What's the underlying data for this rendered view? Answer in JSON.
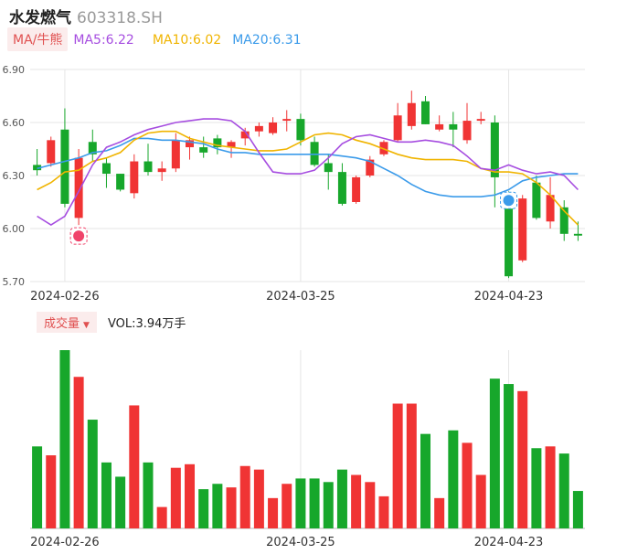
{
  "header": {
    "name": "水发燃气",
    "code": "603318.SH"
  },
  "legend": {
    "ma_label": "MA/牛熊",
    "ma5": "MA5:6.22",
    "ma10": "MA10:6.02",
    "ma20": "MA20:6.31"
  },
  "vol_legend": {
    "label": "成交量",
    "value": "VOL:3.94万手"
  },
  "colors": {
    "up": "#f03434",
    "down": "#17a72b",
    "ma5": "#a64de0",
    "ma10": "#f0b400",
    "ma20": "#3b9bea",
    "grid": "#e6e6e6"
  },
  "chart_data": {
    "type": "candlestick",
    "y_ticks": [
      "6.90",
      "6.60",
      "6.30",
      "6.00",
      "5.70"
    ],
    "ylim": [
      5.7,
      6.9
    ],
    "x_ticks": [
      {
        "index": 2,
        "label": "2024-02-26"
      },
      {
        "index": 19,
        "label": "2024-03-25"
      },
      {
        "index": 34,
        "label": "2024-04-23"
      }
    ],
    "markers": [
      {
        "index": 3,
        "icon": "bull-marker"
      },
      {
        "index": 34,
        "icon": "bear-marker"
      }
    ],
    "candles": [
      {
        "o": 6.36,
        "c": 6.33,
        "h": 6.45,
        "l": 6.3
      },
      {
        "o": 6.37,
        "c": 6.5,
        "h": 6.52,
        "l": 6.35
      },
      {
        "o": 6.56,
        "c": 6.14,
        "h": 6.68,
        "l": 6.12
      },
      {
        "o": 6.06,
        "c": 6.4,
        "h": 6.45,
        "l": 6.02
      },
      {
        "o": 6.49,
        "c": 6.42,
        "h": 6.56,
        "l": 6.38
      },
      {
        "o": 6.37,
        "c": 6.31,
        "h": 6.4,
        "l": 6.23
      },
      {
        "o": 6.31,
        "c": 6.22,
        "h": 6.31,
        "l": 6.21
      },
      {
        "o": 6.2,
        "c": 6.38,
        "h": 6.42,
        "l": 6.17
      },
      {
        "o": 6.38,
        "c": 6.32,
        "h": 6.48,
        "l": 6.3
      },
      {
        "o": 6.32,
        "c": 6.34,
        "h": 6.38,
        "l": 6.27
      },
      {
        "o": 6.34,
        "c": 6.5,
        "h": 6.54,
        "l": 6.32
      },
      {
        "o": 6.46,
        "c": 6.5,
        "h": 6.52,
        "l": 6.39
      },
      {
        "o": 6.46,
        "c": 6.43,
        "h": 6.52,
        "l": 6.4
      },
      {
        "o": 6.51,
        "c": 6.46,
        "h": 6.53,
        "l": 6.42
      },
      {
        "o": 6.46,
        "c": 6.49,
        "h": 6.5,
        "l": 6.4
      },
      {
        "o": 6.51,
        "c": 6.55,
        "h": 6.57,
        "l": 6.47
      },
      {
        "o": 6.55,
        "c": 6.58,
        "h": 6.6,
        "l": 6.52
      },
      {
        "o": 6.54,
        "c": 6.6,
        "h": 6.63,
        "l": 6.53
      },
      {
        "o": 6.61,
        "c": 6.62,
        "h": 6.67,
        "l": 6.55
      },
      {
        "o": 6.62,
        "c": 6.5,
        "h": 6.65,
        "l": 6.47
      },
      {
        "o": 6.49,
        "c": 6.36,
        "h": 6.52,
        "l": 6.35
      },
      {
        "o": 6.37,
        "c": 6.32,
        "h": 6.42,
        "l": 6.22
      },
      {
        "o": 6.32,
        "c": 6.14,
        "h": 6.37,
        "l": 6.13
      },
      {
        "o": 6.15,
        "c": 6.29,
        "h": 6.3,
        "l": 6.14
      },
      {
        "o": 6.3,
        "c": 6.39,
        "h": 6.41,
        "l": 6.29
      },
      {
        "o": 6.42,
        "c": 6.49,
        "h": 6.5,
        "l": 6.41
      },
      {
        "o": 6.5,
        "c": 6.64,
        "h": 6.71,
        "l": 6.49
      },
      {
        "o": 6.58,
        "c": 6.71,
        "h": 6.78,
        "l": 6.56
      },
      {
        "o": 6.72,
        "c": 6.59,
        "h": 6.75,
        "l": 6.59
      },
      {
        "o": 6.56,
        "c": 6.59,
        "h": 6.64,
        "l": 6.55
      },
      {
        "o": 6.59,
        "c": 6.56,
        "h": 6.66,
        "l": 6.46
      },
      {
        "o": 6.5,
        "c": 6.61,
        "h": 6.71,
        "l": 6.48
      },
      {
        "o": 6.61,
        "c": 6.62,
        "h": 6.66,
        "l": 6.59
      },
      {
        "o": 6.6,
        "c": 6.29,
        "h": 6.64,
        "l": 6.12
      },
      {
        "o": 6.18,
        "c": 5.73,
        "h": 6.21,
        "l": 5.72
      },
      {
        "o": 5.82,
        "c": 6.17,
        "h": 6.19,
        "l": 5.81
      },
      {
        "o": 6.26,
        "c": 6.06,
        "h": 6.3,
        "l": 6.05
      },
      {
        "o": 6.04,
        "c": 6.19,
        "h": 6.29,
        "l": 6.0
      },
      {
        "o": 6.12,
        "c": 5.97,
        "h": 6.16,
        "l": 5.93
      },
      {
        "o": 5.97,
        "c": 5.96,
        "h": 6.04,
        "l": 5.93
      }
    ],
    "ma5": [
      6.07,
      6.02,
      6.07,
      6.21,
      6.36,
      6.46,
      6.49,
      6.53,
      6.56,
      6.58,
      6.6,
      6.61,
      6.62,
      6.62,
      6.61,
      6.55,
      6.43,
      6.32,
      6.31,
      6.31,
      6.33,
      6.4,
      6.48,
      6.52,
      6.53,
      6.51,
      6.49,
      6.49,
      6.5,
      6.49,
      6.47,
      6.41,
      6.34,
      6.33,
      6.36,
      6.33,
      6.31,
      6.32,
      6.3,
      6.22
    ],
    "ma10": [
      6.22,
      6.26,
      6.32,
      6.33,
      6.38,
      6.4,
      6.43,
      6.5,
      6.54,
      6.55,
      6.55,
      6.51,
      6.49,
      6.47,
      6.46,
      6.45,
      6.44,
      6.44,
      6.45,
      6.49,
      6.53,
      6.54,
      6.53,
      6.5,
      6.48,
      6.45,
      6.42,
      6.4,
      6.39,
      6.39,
      6.39,
      6.38,
      6.34,
      6.32,
      6.32,
      6.31,
      6.26,
      6.19,
      6.1,
      6.02
    ],
    "ma20": [
      6.34,
      6.36,
      6.38,
      6.4,
      6.43,
      6.44,
      6.47,
      6.51,
      6.51,
      6.5,
      6.5,
      6.49,
      6.48,
      6.45,
      6.43,
      6.43,
      6.42,
      6.42,
      6.42,
      6.42,
      6.42,
      6.42,
      6.41,
      6.4,
      6.38,
      6.34,
      6.3,
      6.25,
      6.21,
      6.19,
      6.18,
      6.18,
      6.18,
      6.19,
      6.22,
      6.27,
      6.29,
      6.3,
      6.31,
      6.31
    ],
    "volume": {
      "ymax": 1.0,
      "values": [
        0.46,
        0.41,
        1.0,
        0.85,
        0.61,
        0.37,
        0.29,
        0.69,
        0.37,
        0.12,
        0.34,
        0.36,
        0.22,
        0.25,
        0.23,
        0.35,
        0.33,
        0.17,
        0.25,
        0.28,
        0.28,
        0.26,
        0.33,
        0.3,
        0.26,
        0.18,
        0.7,
        0.7,
        0.53,
        0.17,
        0.55,
        0.48,
        0.3,
        0.84,
        0.81,
        0.77,
        0.45,
        0.46,
        0.42,
        0.21
      ]
    }
  }
}
